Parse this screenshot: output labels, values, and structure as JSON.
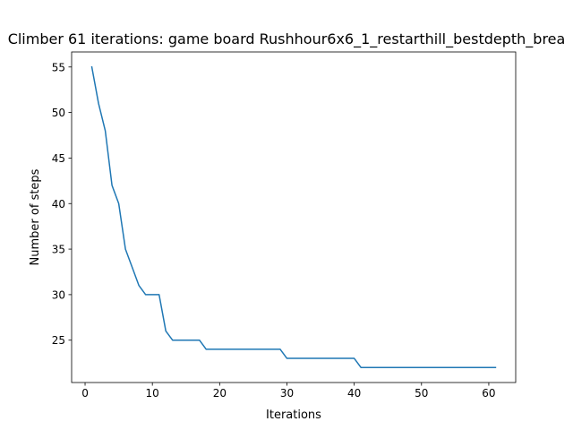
{
  "chart_data": {
    "type": "line",
    "title": "Climber 61 iterations: game board Rushhour6x6_1_restarthill_bestdepth_brea",
    "xlabel": "Iterations",
    "ylabel": "Number of steps",
    "xlim": [
      -2,
      64
    ],
    "ylim": [
      20.35,
      56.65
    ],
    "xticks": [
      0,
      10,
      20,
      30,
      40,
      50,
      60
    ],
    "yticks": [
      25,
      30,
      35,
      40,
      45,
      50,
      55
    ],
    "grid": false,
    "legend": "none",
    "line_color": "#1f77b4",
    "series": [
      {
        "x": [
          1,
          2,
          3,
          4,
          5,
          6,
          7,
          8,
          9,
          10,
          11,
          12,
          13,
          14,
          15,
          16,
          17,
          18,
          19,
          20,
          21,
          22,
          23,
          24,
          25,
          26,
          27,
          28,
          29,
          30,
          31,
          32,
          33,
          34,
          35,
          36,
          37,
          38,
          39,
          40,
          41,
          42,
          43,
          44,
          45,
          46,
          47,
          48,
          49,
          50,
          51,
          52,
          53,
          54,
          55,
          56,
          57,
          58,
          59,
          60,
          61
        ],
        "values": [
          55,
          51,
          48,
          42,
          40,
          35,
          33,
          31,
          30,
          30,
          30,
          26,
          25,
          25,
          25,
          25,
          25,
          24,
          24,
          24,
          24,
          24,
          24,
          24,
          24,
          24,
          24,
          24,
          24,
          23,
          23,
          23,
          23,
          23,
          23,
          23,
          23,
          23,
          23,
          23,
          22,
          22,
          22,
          22,
          22,
          22,
          22,
          22,
          22,
          22,
          22,
          22,
          22,
          22,
          22,
          22,
          22,
          22,
          22,
          22,
          22
        ]
      }
    ]
  }
}
